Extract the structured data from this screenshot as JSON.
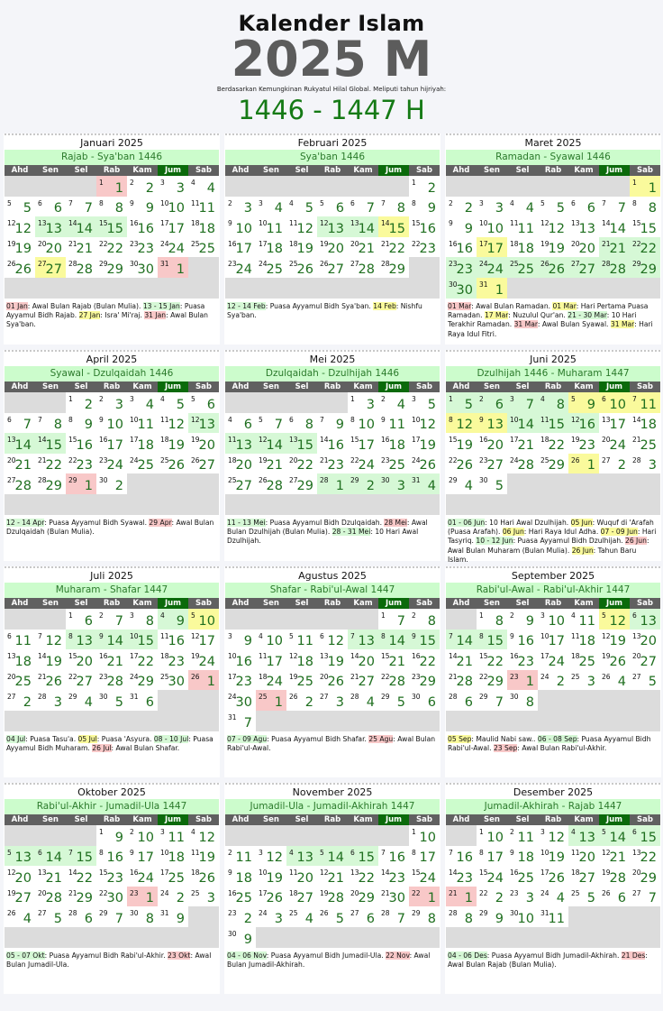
{
  "header": {
    "title": "Kalender Islam",
    "year": "2025 M",
    "subtitle": "Berdasarkan Kemungkinan Rukyatul Hilal Global. Meliputi tahun hijriyah:",
    "hijri_years": "1446 - 1447 H"
  },
  "colors": {
    "green_highlight": "#d6f8d6",
    "yellow_highlight": "#fafa9c",
    "pink_highlight": "#f8c8c8",
    "empty": "#dcdcdc",
    "friday_header": "#0b6a0b",
    "hijri_text": "#1f6f1f"
  },
  "weekdays": [
    "Ahd",
    "Sen",
    "Sel",
    "Rab",
    "Kam",
    "Jum",
    "Sab"
  ],
  "months": [
    {
      "title": "Januari 2025",
      "hijri": "Rajab - Sya'ban 1446",
      "start_weekday": 3,
      "hijri_days": [
        1,
        2,
        3,
        4,
        5,
        6,
        7,
        8,
        9,
        10,
        11,
        12,
        13,
        14,
        15,
        16,
        17,
        18,
        19,
        20,
        21,
        22,
        23,
        24,
        25,
        26,
        27,
        28,
        29,
        30,
        1
      ],
      "highlights": {
        "g": [
          13,
          14,
          15
        ],
        "y": [
          27
        ],
        "p": [
          1,
          31
        ]
      },
      "notes": [
        [
          "01 Jan",
          "p"
        ],
        [
          ": Awal Bulan Rajab (Bulan Mulia). ",
          ""
        ],
        [
          "13 - 15 Jan",
          "g"
        ],
        [
          ": Puasa Ayyamul Bidh Rajab. ",
          ""
        ],
        [
          "27 Jan",
          "y"
        ],
        [
          ": Isra' Mi'raj. ",
          ""
        ],
        [
          "31 Jan",
          "p"
        ],
        [
          ": Awal Bulan Sya'ban.",
          ""
        ]
      ]
    },
    {
      "title": "Februari 2025",
      "hijri": "Sya'ban 1446",
      "start_weekday": 6,
      "hijri_days": [
        2,
        3,
        4,
        5,
        6,
        7,
        8,
        9,
        10,
        11,
        12,
        13,
        14,
        15,
        16,
        17,
        18,
        19,
        20,
        21,
        22,
        23,
        24,
        25,
        26,
        27,
        28,
        29
      ],
      "highlights": {
        "g": [
          12,
          13
        ],
        "y": [
          14
        ],
        "p": []
      },
      "notes": [
        [
          "12 - 14 Feb",
          "g"
        ],
        [
          ": Puasa Ayyamul Bidh Sya'ban. ",
          ""
        ],
        [
          "14 Feb",
          "y"
        ],
        [
          ": Nishfu Sya'ban.",
          ""
        ]
      ]
    },
    {
      "title": "Maret 2025",
      "hijri": "Ramadan - Syawal 1446",
      "start_weekday": 6,
      "hijri_days": [
        1,
        2,
        3,
        4,
        5,
        6,
        7,
        8,
        9,
        10,
        11,
        12,
        13,
        14,
        15,
        16,
        17,
        18,
        19,
        20,
        21,
        22,
        23,
        24,
        25,
        26,
        27,
        28,
        29,
        30,
        1
      ],
      "highlights": {
        "g": [
          21,
          22,
          23,
          24,
          25,
          26,
          27,
          28,
          29,
          30
        ],
        "y": [
          1,
          17,
          31
        ],
        "p": []
      },
      "notes": [
        [
          "01 Mar",
          "p"
        ],
        [
          ": Awal Bulan Ramadan. ",
          ""
        ],
        [
          "01 Mar",
          "y"
        ],
        [
          ": Hari Pertama Puasa Ramadan. ",
          ""
        ],
        [
          "17 Mar",
          "y"
        ],
        [
          ": Nuzulul Qur'an. ",
          ""
        ],
        [
          "21 - 30 Mar",
          "g"
        ],
        [
          ": 10 Hari Terakhir Ramadan. ",
          ""
        ],
        [
          "31 Mar",
          "p"
        ],
        [
          ": Awal Bulan Syawal. ",
          ""
        ],
        [
          "31 Mar",
          "y"
        ],
        [
          ": Hari Raya Idul Fitri.",
          ""
        ]
      ]
    },
    {
      "title": "April 2025",
      "hijri": "Syawal - Dzulqaidah 1446",
      "start_weekday": 2,
      "hijri_days": [
        2,
        3,
        4,
        5,
        6,
        7,
        8,
        9,
        10,
        11,
        12,
        13,
        14,
        15,
        16,
        17,
        18,
        19,
        20,
        21,
        22,
        23,
        24,
        25,
        26,
        27,
        28,
        29,
        1,
        2
      ],
      "highlights": {
        "g": [
          12,
          13,
          14
        ],
        "y": [],
        "p": [
          29
        ]
      },
      "notes": [
        [
          "12 - 14 Apr",
          "g"
        ],
        [
          ": Puasa Ayyamul Bidh Syawal. ",
          ""
        ],
        [
          "29 Apr",
          "p"
        ],
        [
          ": Awal Bulan Dzulqaidah (Bulan Mulia).",
          ""
        ]
      ]
    },
    {
      "title": "Mei 2025",
      "hijri": "Dzulqaidah - Dzulhijah 1446",
      "start_weekday": 4,
      "hijri_days": [
        3,
        4,
        5,
        6,
        7,
        8,
        9,
        10,
        11,
        12,
        13,
        14,
        15,
        16,
        17,
        18,
        19,
        20,
        21,
        22,
        23,
        24,
        25,
        26,
        27,
        28,
        29,
        1,
        2,
        3,
        4
      ],
      "highlights": {
        "g": [
          11,
          12,
          13,
          28,
          29,
          30,
          31
        ],
        "y": [],
        "p": []
      },
      "notes": [
        [
          "11 - 13 Mei",
          "g"
        ],
        [
          ": Puasa Ayyamul Bidh Dzulqaidah. ",
          ""
        ],
        [
          "28 Mei",
          "p"
        ],
        [
          ": Awal Bulan Dzulhijah (Bulan Mulia). ",
          ""
        ],
        [
          "28 - 31 Mei",
          "g"
        ],
        [
          ": 10 Hari Awal Dzulhijah.",
          ""
        ]
      ]
    },
    {
      "title": "Juni 2025",
      "hijri": "Dzulhijah 1446 - Muharam 1447",
      "start_weekday": 0,
      "hijri_days": [
        5,
        6,
        7,
        8,
        9,
        10,
        11,
        12,
        13,
        14,
        15,
        16,
        17,
        18,
        19,
        20,
        21,
        22,
        23,
        24,
        25,
        26,
        27,
        28,
        29,
        1,
        2,
        3,
        4,
        5
      ],
      "highlights": {
        "g": [
          1,
          2,
          3,
          4,
          10,
          11,
          12
        ],
        "y": [
          5,
          6,
          7,
          8,
          9,
          26
        ],
        "p": []
      },
      "notes": [
        [
          "01 - 06 Jun",
          "g"
        ],
        [
          ": 10 Hari Awal Dzulhijah. ",
          ""
        ],
        [
          "05 Jun",
          "y"
        ],
        [
          ": Wuquf di 'Arafah (Puasa Arafah). ",
          ""
        ],
        [
          "06 Jun",
          "y"
        ],
        [
          ": Hari Raya Idul Adha. ",
          ""
        ],
        [
          "07 - 09 Jun",
          "y"
        ],
        [
          ": Hari Tasyriq. ",
          ""
        ],
        [
          "10 - 12 Jun",
          "g"
        ],
        [
          ": Puasa Ayyamul Bidh Dzulhijah. ",
          ""
        ],
        [
          "26 Jun",
          "p"
        ],
        [
          ": Awal Bulan Muharam (Bulan Mulia). ",
          ""
        ],
        [
          "26 Jun",
          "y"
        ],
        [
          ": Tahun Baru Islam.",
          ""
        ]
      ]
    },
    {
      "title": "Juli 2025",
      "hijri": "Muharam - Shafar 1447",
      "start_weekday": 2,
      "hijri_days": [
        6,
        7,
        8,
        9,
        10,
        11,
        12,
        13,
        14,
        15,
        16,
        17,
        18,
        19,
        20,
        21,
        22,
        23,
        24,
        25,
        26,
        27,
        28,
        29,
        30,
        1,
        2,
        3,
        4,
        5,
        6
      ],
      "highlights": {
        "g": [
          4,
          8,
          9,
          10
        ],
        "y": [
          5
        ],
        "p": [
          26
        ]
      },
      "notes": [
        [
          "04 Jul",
          "g"
        ],
        [
          ": Puasa Tasu'a. ",
          ""
        ],
        [
          "05 Jul",
          "y"
        ],
        [
          ": Puasa 'Asyura. ",
          ""
        ],
        [
          "08 - 10 Jul",
          "g"
        ],
        [
          ": Puasa Ayyamul Bidh Muharam. ",
          ""
        ],
        [
          "26 Jul",
          "p"
        ],
        [
          ": Awal Bulan Shafar.",
          ""
        ]
      ]
    },
    {
      "title": "Agustus 2025",
      "hijri": "Shafar - Rabi'ul-Awal 1447",
      "start_weekday": 5,
      "hijri_days": [
        7,
        8,
        9,
        10,
        11,
        12,
        13,
        14,
        15,
        16,
        17,
        18,
        19,
        20,
        21,
        22,
        23,
        24,
        25,
        26,
        27,
        28,
        29,
        30,
        1,
        2,
        3,
        4,
        5,
        6,
        7
      ],
      "highlights": {
        "g": [
          7,
          8,
          9
        ],
        "y": [],
        "p": [
          25
        ]
      },
      "notes": [
        [
          "07 - 09 Agu",
          "g"
        ],
        [
          ": Puasa Ayyamul Bidh Shafar. ",
          ""
        ],
        [
          "25 Agu",
          "p"
        ],
        [
          ": Awal Bulan Rabi'ul-Awal.",
          ""
        ]
      ]
    },
    {
      "title": "September 2025",
      "hijri": "Rabi'ul-Awal - Rabi'ul-Akhir 1447",
      "start_weekday": 1,
      "hijri_days": [
        8,
        9,
        10,
        11,
        12,
        13,
        14,
        15,
        16,
        17,
        18,
        19,
        20,
        21,
        22,
        23,
        24,
        25,
        26,
        27,
        28,
        29,
        1,
        2,
        3,
        4,
        5,
        6,
        7,
        8
      ],
      "highlights": {
        "g": [
          6,
          7,
          8
        ],
        "y": [
          5
        ],
        "p": [
          23
        ]
      },
      "notes": [
        [
          "05 Sep",
          "y"
        ],
        [
          ": Maulid Nabi saw.. ",
          ""
        ],
        [
          "06 - 08 Sep",
          "g"
        ],
        [
          ": Puasa Ayyamul Bidh Rabi'ul-Awal. ",
          ""
        ],
        [
          "23 Sep",
          "p"
        ],
        [
          ": Awal Bulan Rabi'ul-Akhir.",
          ""
        ]
      ]
    },
    {
      "title": "Oktober 2025",
      "hijri": "Rabi'ul-Akhir - Jumadil-Ula 1447",
      "start_weekday": 3,
      "hijri_days": [
        9,
        10,
        11,
        12,
        13,
        14,
        15,
        16,
        17,
        18,
        19,
        20,
        21,
        22,
        23,
        24,
        25,
        26,
        27,
        28,
        29,
        30,
        1,
        2,
        3,
        4,
        5,
        6,
        7,
        8,
        9
      ],
      "highlights": {
        "g": [
          5,
          6,
          7
        ],
        "y": [],
        "p": [
          23
        ]
      },
      "notes": [
        [
          "05 - 07 Okt",
          "g"
        ],
        [
          ": Puasa Ayyamul Bidh Rabi'ul-Akhir. ",
          ""
        ],
        [
          "23 Okt",
          "p"
        ],
        [
          ": Awal Bulan Jumadil-Ula.",
          ""
        ]
      ]
    },
    {
      "title": "November 2025",
      "hijri": "Jumadil-Ula - Jumadil-Akhirah 1447",
      "start_weekday": 6,
      "hijri_days": [
        10,
        11,
        12,
        13,
        14,
        15,
        16,
        17,
        18,
        19,
        20,
        21,
        22,
        23,
        24,
        25,
        26,
        27,
        28,
        29,
        30,
        1,
        2,
        3,
        4,
        5,
        6,
        7,
        8,
        9
      ],
      "highlights": {
        "g": [
          4,
          5,
          6
        ],
        "y": [],
        "p": [
          22
        ]
      },
      "notes": [
        [
          "04 - 06 Nov",
          "g"
        ],
        [
          ": Puasa Ayyamul Bidh Jumadil-Ula. ",
          ""
        ],
        [
          "22 Nov",
          "p"
        ],
        [
          ": Awal Bulan Jumadil-Akhirah.",
          ""
        ]
      ]
    },
    {
      "title": "Desember 2025",
      "hijri": "Jumadil-Akhirah - Rajab 1447",
      "start_weekday": 1,
      "hijri_days": [
        10,
        11,
        12,
        13,
        14,
        15,
        16,
        17,
        18,
        19,
        20,
        21,
        22,
        23,
        24,
        25,
        26,
        27,
        28,
        29,
        1,
        2,
        3,
        4,
        5,
        6,
        7,
        8,
        9,
        10,
        11
      ],
      "highlights": {
        "g": [
          4,
          5,
          6
        ],
        "y": [],
        "p": [
          21
        ]
      },
      "notes": [
        [
          "04 - 06 Des",
          "g"
        ],
        [
          ": Puasa Ayyamul Bidh Jumadil-Akhirah. ",
          ""
        ],
        [
          "21 Des",
          "p"
        ],
        [
          ": Awal Bulan Rajab (Bulan Mulia).",
          ""
        ]
      ]
    }
  ]
}
